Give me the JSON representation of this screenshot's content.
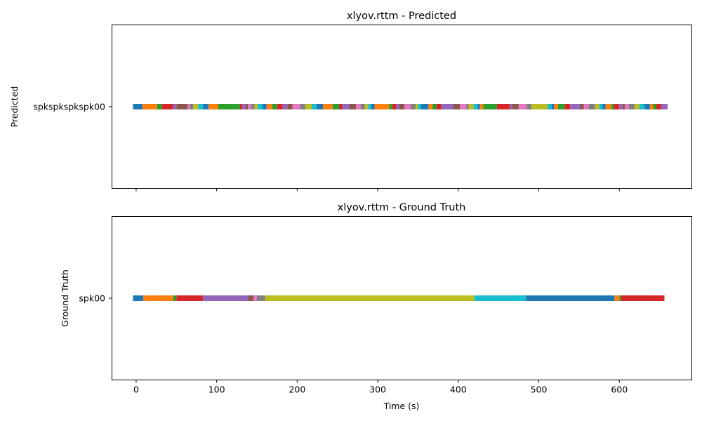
{
  "palette": [
    "#1f77b4",
    "#ff7f0e",
    "#2ca02c",
    "#d62728",
    "#9467bd",
    "#8c564b",
    "#e377c2",
    "#7f7f7f",
    "#bcbd22",
    "#17becf"
  ],
  "chart_data": [
    {
      "type": "timeline",
      "title": "xlyov.rttm - Predicted",
      "ylabel": "Predicted",
      "xlabel": "",
      "y_category": "spkspkspkspk00",
      "xlim": [
        -30,
        690
      ],
      "xticks": [
        0,
        100,
        200,
        300,
        400,
        500,
        600
      ],
      "show_xtick_labels": false,
      "segment_boundaries": [
        -4,
        8,
        26,
        32,
        46,
        50,
        64,
        67,
        71,
        77,
        83,
        90,
        102,
        129,
        132,
        136,
        139,
        143,
        147,
        151,
        157,
        162,
        169,
        175,
        182,
        188,
        194,
        204,
        210,
        218,
        224,
        232,
        244,
        252,
        256,
        265,
        273,
        279,
        284,
        288,
        292,
        296,
        314,
        318,
        323,
        327,
        333,
        341,
        347,
        350,
        354,
        363,
        368,
        373,
        379,
        394,
        402,
        410,
        413,
        419,
        424,
        427,
        431,
        448,
        464,
        467,
        475,
        485,
        491,
        511,
        516,
        519,
        524,
        532,
        539,
        551,
        556,
        562,
        570,
        575,
        579,
        583,
        590,
        593,
        600,
        604,
        607,
        612,
        619,
        625,
        631,
        638,
        642,
        646,
        652,
        660
      ]
    },
    {
      "type": "timeline",
      "title": "xlyov.rttm - Ground Truth",
      "ylabel": "Ground Truth",
      "xlabel": "Time (s)",
      "y_category": "spk00",
      "xlim": [
        -30,
        690
      ],
      "xticks": [
        0,
        100,
        200,
        300,
        400,
        500,
        600
      ],
      "show_xtick_labels": true,
      "segment_boundaries": [
        -4,
        9,
        46,
        50,
        83,
        139,
        146,
        150,
        160,
        420,
        484,
        594,
        600,
        602,
        656
      ]
    }
  ]
}
